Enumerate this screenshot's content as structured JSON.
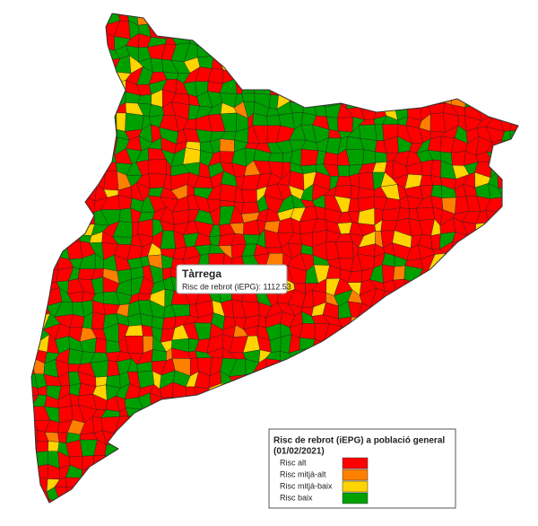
{
  "tooltip": {
    "name": "Tàrrega",
    "text": "Risc de rebrot (iEPG): 1112.53"
  },
  "legend": {
    "title": "Risc de rebrot (iEPG) a població general",
    "date": "(01/02/2021)",
    "items": [
      {
        "label": "Risc alt",
        "color": "#ff0000"
      },
      {
        "label": "Risc mitjà-alt",
        "color": "#ff8000"
      },
      {
        "label": "Risc mitjà-baix",
        "color": "#ffd400"
      },
      {
        "label": "Risc baix",
        "color": "#00a000"
      }
    ]
  }
}
